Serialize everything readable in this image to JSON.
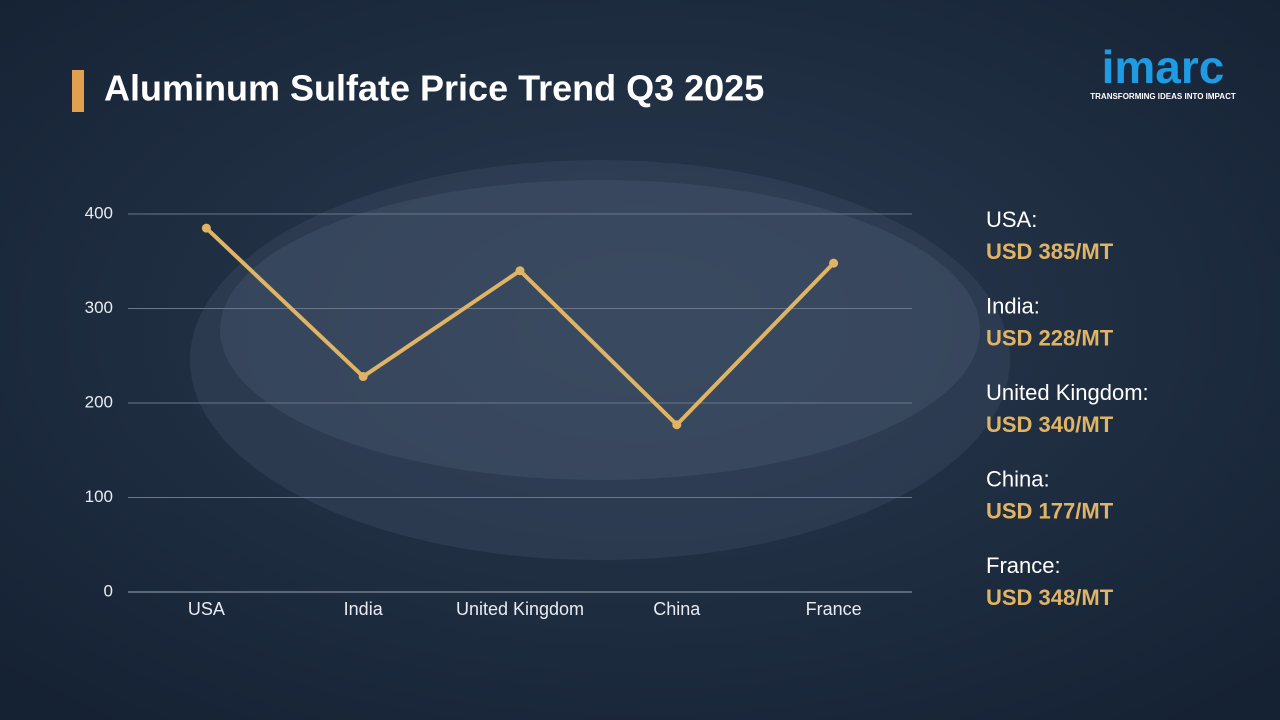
{
  "chart_data": {
    "type": "line",
    "title": "Aluminum Sulfate Price Trend Q3 2025",
    "categories": [
      "USA",
      "India",
      "United Kingdom",
      "China",
      "France"
    ],
    "values": [
      385,
      228,
      340,
      177,
      348
    ],
    "value_labels": [
      "USD 385/MT",
      "USD 228/MT",
      "USD 340/MT",
      "USD 177/MT",
      "USD 348/MT"
    ],
    "panel_labels": [
      "USA:",
      "India:",
      "United Kingdom:",
      "China:",
      "France:"
    ],
    "color": "#e0b465",
    "ylim": [
      0,
      400
    ],
    "yticks": [
      0,
      100,
      200,
      300,
      400
    ],
    "grid": true
  },
  "logo": {
    "name": "imarc",
    "tagline": "TRANSFORMING IDEAS INTO IMPACT"
  }
}
